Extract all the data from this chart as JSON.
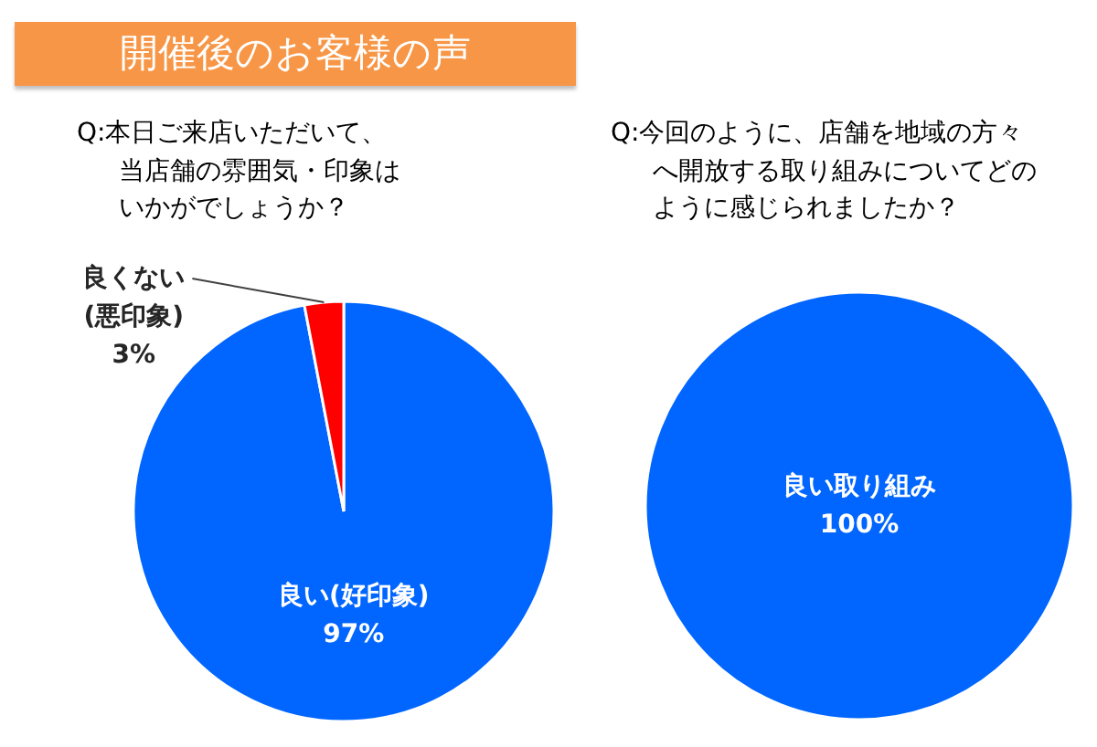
{
  "chart_data": [
    {
      "type": "pie",
      "title": "開催後のお客様の声",
      "subtitle": "Q:本日ご来店いただいて、当店舗の雰囲気・印象はいかがでしょうか？",
      "categories": [
        "良い(好印象)",
        "良くない(悪印象)"
      ],
      "values": [
        97,
        3
      ],
      "value_labels": [
        "97%",
        "3%"
      ],
      "colors": [
        "#0066ff",
        "#ff0000"
      ]
    },
    {
      "type": "pie",
      "subtitle": "Q:今回のように、店舗を地域の方々へ開放する取り組みについてどのように感じられましたか？",
      "categories": [
        "良い取り組み"
      ],
      "values": [
        100
      ],
      "value_labels": [
        "100%"
      ],
      "colors": [
        "#0066ff"
      ]
    }
  ]
}
